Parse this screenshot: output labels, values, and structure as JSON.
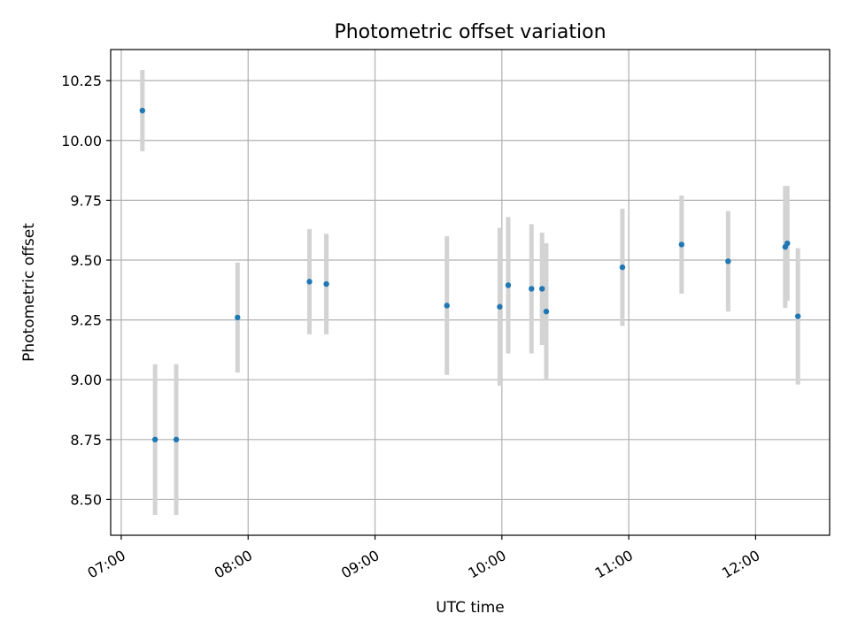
{
  "chart_data": {
    "type": "scatter",
    "title": "Photometric offset variation",
    "xlabel": "UTC time",
    "ylabel": "Photometric offset",
    "xlim": [
      "06:55",
      "12:35"
    ],
    "ylim": [
      8.35,
      10.38
    ],
    "x_ticks": [
      "07:00",
      "08:00",
      "09:00",
      "10:00",
      "11:00",
      "12:00"
    ],
    "y_ticks": [
      "8.50",
      "8.75",
      "9.00",
      "9.25",
      "9.50",
      "9.75",
      "10.00",
      "10.25"
    ],
    "grid": true,
    "colors": {
      "marker": "#1f77b4",
      "errorbar": "#d3d3d3",
      "grid": "#b0b0b0"
    },
    "series": [
      {
        "points": [
          {
            "x": "07:10",
            "y": 10.125,
            "err": 0.17
          },
          {
            "x": "07:16",
            "y": 8.75,
            "err": 0.315
          },
          {
            "x": "07:26",
            "y": 8.75,
            "err": 0.315
          },
          {
            "x": "07:55",
            "y": 9.26,
            "err": 0.23
          },
          {
            "x": "08:29",
            "y": 9.41,
            "err": 0.22
          },
          {
            "x": "08:37",
            "y": 9.4,
            "err": 0.21
          },
          {
            "x": "09:34",
            "y": 9.31,
            "err": 0.29
          },
          {
            "x": "09:59",
            "y": 9.305,
            "err": 0.33
          },
          {
            "x": "10:03",
            "y": 9.395,
            "err": 0.285
          },
          {
            "x": "10:14",
            "y": 9.38,
            "err": 0.27
          },
          {
            "x": "10:19",
            "y": 9.38,
            "err": 0.235
          },
          {
            "x": "10:21",
            "y": 9.285,
            "err": 0.285
          },
          {
            "x": "10:57",
            "y": 9.47,
            "err": 0.245
          },
          {
            "x": "11:25",
            "y": 9.565,
            "err": 0.205
          },
          {
            "x": "11:47",
            "y": 9.495,
            "err": 0.21
          },
          {
            "x": "12:14",
            "y": 9.555,
            "err": 0.255
          },
          {
            "x": "12:15",
            "y": 9.57,
            "err": 0.24
          },
          {
            "x": "12:20",
            "y": 9.265,
            "err": 0.285
          }
        ]
      }
    ]
  }
}
